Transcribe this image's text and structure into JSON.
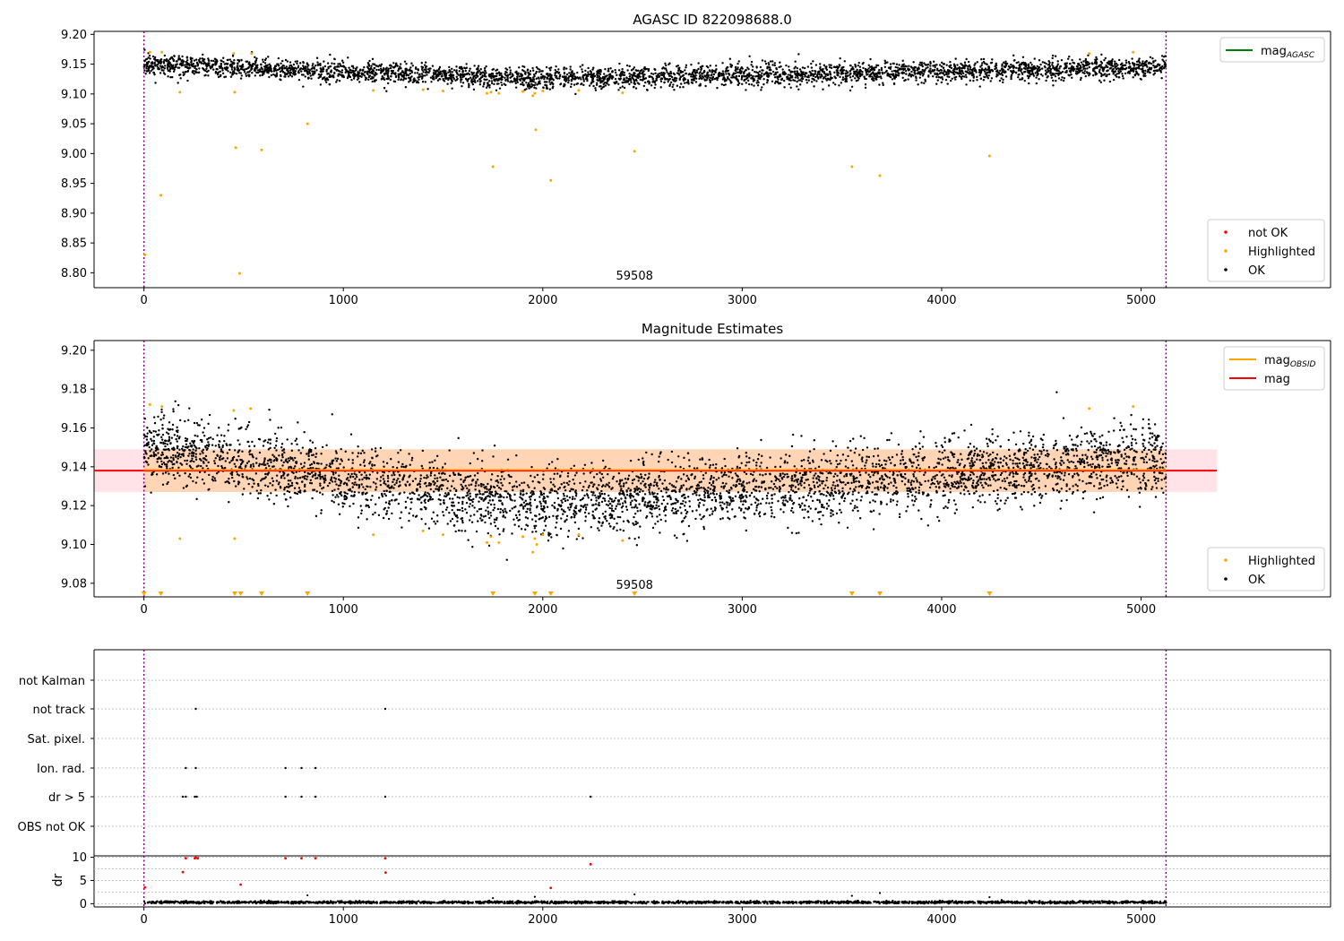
{
  "chart_data": [
    {
      "type": "scatter",
      "title": "AGASC ID 822098688.0",
      "xlabel": "",
      "ylabel": "",
      "xlim": [
        -250,
        5950
      ],
      "ylim": [
        8.775,
        9.205
      ],
      "xticks": [
        0,
        1000,
        2000,
        3000,
        4000,
        5000
      ],
      "yticks": [
        8.8,
        8.85,
        8.9,
        8.95,
        9.0,
        9.05,
        9.1,
        9.15,
        9.2
      ],
      "ytick_format": 2,
      "vlines": [
        0,
        5125
      ],
      "vline_color": "#800080",
      "annotation": {
        "text": "59508",
        "x": 2460,
        "y": 8.778
      },
      "ok_band": {
        "x_range": [
          0,
          5125
        ],
        "center_start": 9.15,
        "center_mid": 9.125,
        "center_end": 9.145,
        "spread": 0.011,
        "count": 3800
      },
      "highlighted_points": [
        [
          5,
          8.83
        ],
        [
          85,
          8.93
        ],
        [
          30,
          9.17
        ],
        [
          90,
          9.17
        ],
        [
          180,
          9.103
        ],
        [
          450,
          9.168
        ],
        [
          455,
          9.103
        ],
        [
          460,
          9.01
        ],
        [
          480,
          8.799
        ],
        [
          540,
          9.168
        ],
        [
          590,
          9.006
        ],
        [
          820,
          9.05
        ],
        [
          1150,
          9.106
        ],
        [
          1400,
          9.107
        ],
        [
          1500,
          9.105
        ],
        [
          1720,
          9.101
        ],
        [
          1740,
          9.103
        ],
        [
          1750,
          8.978
        ],
        [
          1780,
          9.101
        ],
        [
          1900,
          9.104
        ],
        [
          1950,
          9.097
        ],
        [
          1960,
          9.101
        ],
        [
          1965,
          9.04
        ],
        [
          2000,
          9.105
        ],
        [
          2040,
          8.955
        ],
        [
          2180,
          9.106
        ],
        [
          2400,
          9.102
        ],
        [
          2460,
          9.004
        ],
        [
          3550,
          8.978
        ],
        [
          3690,
          8.963
        ],
        [
          4240,
          8.996
        ],
        [
          4740,
          9.168
        ],
        [
          4960,
          9.17
        ]
      ],
      "legends": [
        {
          "position": "upper-right",
          "entries": [
            {
              "label": "mag",
              "sub": "AGASC",
              "kind": "line",
              "color": "#008000"
            }
          ]
        },
        {
          "position": "lower-right",
          "entries": [
            {
              "label": "not OK",
              "kind": "marker",
              "color": "#ff0000"
            },
            {
              "label": "Highlighted",
              "kind": "marker",
              "color": "#ffa500"
            },
            {
              "label": "OK",
              "kind": "marker",
              "color": "#000000"
            }
          ]
        }
      ]
    },
    {
      "type": "scatter",
      "title": "Magnitude Estimates",
      "xlabel": "",
      "ylabel": "",
      "xlim": [
        -250,
        5950
      ],
      "ylim": [
        9.073,
        9.205
      ],
      "xticks": [
        0,
        1000,
        2000,
        3000,
        4000,
        5000
      ],
      "yticks": [
        9.08,
        9.1,
        9.12,
        9.14,
        9.16,
        9.18,
        9.2
      ],
      "ytick_format": 2,
      "vlines": [
        0,
        5125
      ],
      "vline_color": "#800080",
      "annotation": {
        "text": "59508",
        "x": 2460,
        "y": 9.076
      },
      "mag_line": {
        "value": 9.138,
        "color": "#ff0000",
        "x_range": [
          -250,
          5380
        ]
      },
      "mag_obsid_line": {
        "value": 9.138,
        "color": "#ffa500",
        "x_range": [
          0,
          5125
        ]
      },
      "mag_band": {
        "low": 9.127,
        "high": 9.149,
        "x_range": [
          -250,
          5380
        ],
        "color": "#ffc0cb"
      },
      "mag_obsid_band": {
        "low": 9.127,
        "high": 9.149,
        "x_range": [
          0,
          5125
        ],
        "color": "#ffa500"
      },
      "ok_band": {
        "x_range": [
          0,
          5125
        ],
        "center_start": 9.15,
        "center_mid": 9.12,
        "center_end": 9.145,
        "spread": 0.011,
        "count": 4200
      },
      "highlighted_points": [
        [
          30,
          9.172
        ],
        [
          90,
          9.171
        ],
        [
          180,
          9.103
        ],
        [
          450,
          9.169
        ],
        [
          455,
          9.103
        ],
        [
          535,
          9.17
        ],
        [
          1150,
          9.105
        ],
        [
          1400,
          9.107
        ],
        [
          1500,
          9.105
        ],
        [
          1720,
          9.101
        ],
        [
          1740,
          9.104
        ],
        [
          1780,
          9.101
        ],
        [
          1900,
          9.104
        ],
        [
          1950,
          9.096
        ],
        [
          1960,
          9.103
        ],
        [
          1970,
          9.1
        ],
        [
          2000,
          9.105
        ],
        [
          2180,
          9.105
        ],
        [
          2400,
          9.102
        ],
        [
          4740,
          9.17
        ],
        [
          4960,
          9.171
        ]
      ],
      "clipped_points_x": [
        0,
        85,
        455,
        485,
        590,
        820,
        1750,
        1960,
        2040,
        2460,
        3550,
        3690,
        4240
      ],
      "legends": [
        {
          "position": "upper-right",
          "entries": [
            {
              "label": "mag",
              "sub": "OBSID",
              "kind": "line",
              "color": "#ffa500"
            },
            {
              "label": "mag",
              "kind": "line",
              "color": "#ff0000"
            }
          ]
        },
        {
          "position": "lower-right",
          "entries": [
            {
              "label": "Highlighted",
              "kind": "marker",
              "color": "#ffa500"
            },
            {
              "label": "OK",
              "kind": "marker",
              "color": "#000000"
            }
          ]
        }
      ]
    },
    {
      "type": "scatter",
      "title": "",
      "xlabel": "",
      "ylabel": "",
      "xlim": [
        -250,
        5950
      ],
      "xticks": [
        0,
        1000,
        2000,
        3000,
        4000,
        5000
      ],
      "vlines": [
        0,
        5125
      ],
      "vline_color": "#800080",
      "categories": [
        "not Kalman",
        "not track",
        "Sat. pixel.",
        "Ion. rad.",
        "dr > 5",
        "OBS not OK"
      ],
      "flag_points": [
        {
          "category": "not track",
          "x": [
            260,
            1210
          ]
        },
        {
          "category": "Ion. rad.",
          "x": [
            210,
            260,
            710,
            790,
            860
          ]
        },
        {
          "category": "dr > 5",
          "x": [
            195,
            210,
            255,
            265,
            710,
            790,
            860,
            1210,
            2240
          ]
        }
      ]
    },
    {
      "type": "scatter",
      "title": "",
      "xlabel": "",
      "ylabel": "dr",
      "xlim": [
        -250,
        5950
      ],
      "ylim": [
        -0.7,
        10.3
      ],
      "yticks": [
        0,
        5,
        10
      ],
      "ytick_format": 0,
      "xticks": [
        0,
        1000,
        2000,
        3000,
        4000,
        5000
      ],
      "vlines": [
        0,
        5125
      ],
      "vline_color": "#800080",
      "not_ok_points": [
        [
          5,
          3.5
        ],
        [
          195,
          6.8
        ],
        [
          210,
          9.8
        ],
        [
          255,
          9.8
        ],
        [
          260,
          9.9
        ],
        [
          270,
          9.8
        ],
        [
          485,
          4.1
        ],
        [
          710,
          9.8
        ],
        [
          790,
          9.8
        ],
        [
          860,
          9.8
        ],
        [
          1210,
          9.8
        ],
        [
          1212,
          6.7
        ],
        [
          2040,
          3.4
        ],
        [
          2240,
          8.5
        ]
      ],
      "ok_points": [
        [
          820,
          1.8
        ],
        [
          1750,
          1.2
        ],
        [
          1960,
          1.5
        ],
        [
          2460,
          2.0
        ],
        [
          3550,
          1.7
        ],
        [
          3690,
          2.3
        ],
        [
          4240,
          1.4
        ]
      ],
      "ok_band": {
        "x_range": [
          0,
          5125
        ],
        "center": 0.3,
        "spread": 0.25,
        "count": 2000
      }
    }
  ]
}
